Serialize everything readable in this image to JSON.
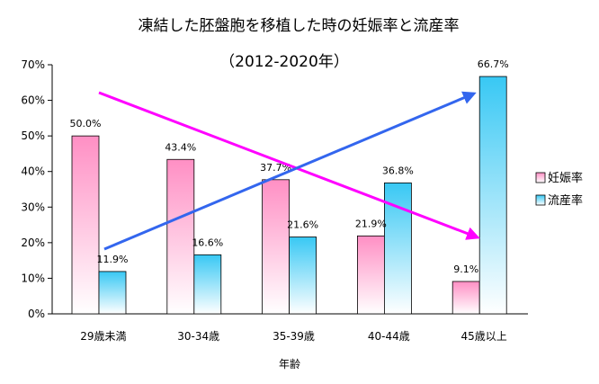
{
  "chart_data": {
    "type": "bar",
    "title": "凍結した胚盤胞を移植した時の妊娠率と流産率",
    "subtitle": "（2012-2020年）",
    "xlabel": "年齢",
    "ylabel": "",
    "ylim": [
      0,
      70
    ],
    "yticks": [
      "0%",
      "10%",
      "20%",
      "30%",
      "40%",
      "50%",
      "60%",
      "70%"
    ],
    "categories": [
      "29歳未満",
      "30-34歳",
      "35-39歳",
      "40-44歳",
      "45歳以上"
    ],
    "series": [
      {
        "name": "妊娠率",
        "values": [
          50.0,
          43.4,
          37.7,
          21.9,
          9.1
        ],
        "labels": [
          "50.0%",
          "43.4%",
          "37.7%",
          "21.9%",
          "9.1%"
        ],
        "color_top": "#ff8fc4",
        "color_bottom": "#ffffff"
      },
      {
        "name": "流産率",
        "values": [
          11.9,
          16.6,
          21.6,
          36.8,
          66.7
        ],
        "labels": [
          "11.9%",
          "16.6%",
          "21.6%",
          "36.8%",
          "66.7%"
        ],
        "color_top": "#38c8f4",
        "color_bottom": "#ffffff"
      }
    ],
    "trend_arrows": [
      {
        "series": "妊娠率",
        "direction": "down",
        "color": "#ff00ff"
      },
      {
        "series": "流産率",
        "direction": "up",
        "color": "#3366ee"
      }
    ],
    "grid": false,
    "legend_position": "right"
  }
}
